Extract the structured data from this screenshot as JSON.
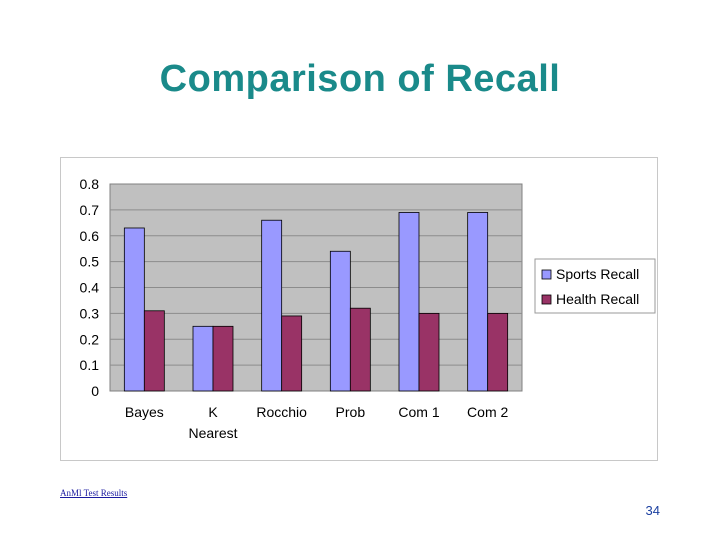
{
  "slide": {
    "title": "Comparison of Recall",
    "footer_link": "AnMl Test Results",
    "page_number": "34"
  },
  "colors": {
    "title": "#1a8a8a",
    "plot_background": "#c0c0c0",
    "gridline": "#8c8c8c"
  },
  "chart_data": {
    "type": "bar",
    "title": "",
    "xlabel": "",
    "ylabel": "",
    "categories": [
      [
        "Bayes"
      ],
      [
        "K",
        "Nearest"
      ],
      [
        "Rocchio"
      ],
      [
        "Prob"
      ],
      [
        "Com 1"
      ],
      [
        "Com 2"
      ]
    ],
    "series": [
      {
        "name": "Sports Recall",
        "color": "#9999ff",
        "values": [
          0.63,
          0.25,
          0.66,
          0.54,
          0.69,
          0.69
        ]
      },
      {
        "name": "Health Recall",
        "color": "#993366",
        "values": [
          0.31,
          0.25,
          0.29,
          0.32,
          0.3,
          0.3
        ]
      }
    ],
    "ylim": [
      0,
      0.8
    ],
    "yticks": [
      "0",
      "0.1",
      "0.2",
      "0.3",
      "0.4",
      "0.5",
      "0.6",
      "0.7",
      "0.8"
    ],
    "grid": true,
    "legend_position": "right"
  }
}
